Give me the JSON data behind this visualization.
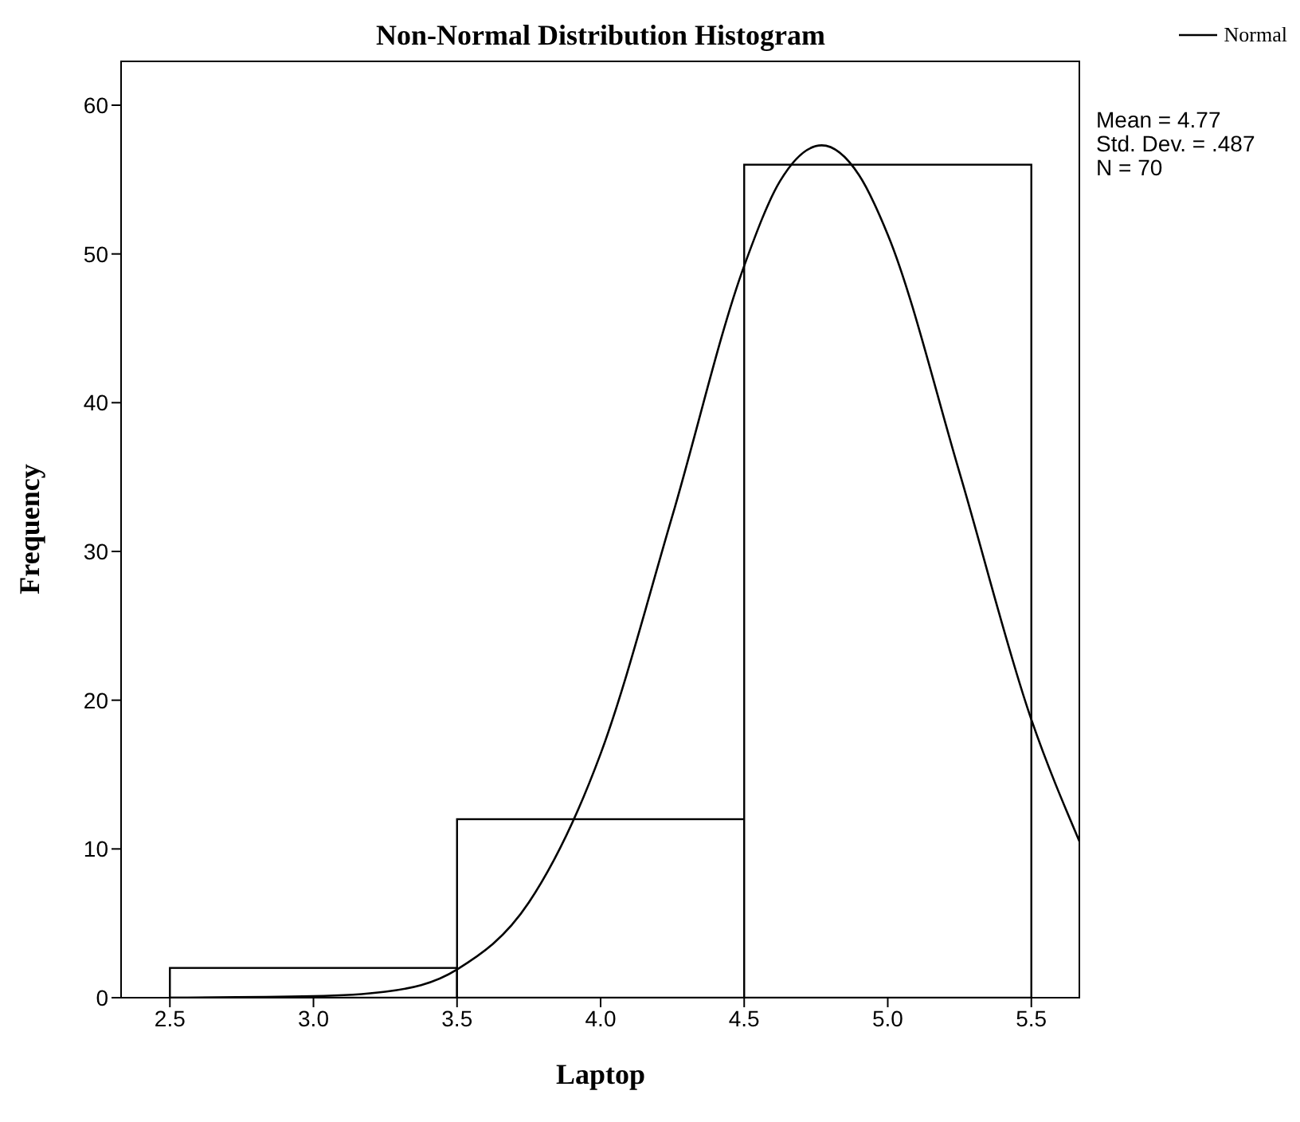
{
  "chart_data": {
    "type": "histogram",
    "title": "Non-Normal Distribution Histogram",
    "xlabel": "Laptop",
    "ylabel": "Frequency",
    "bins": [
      2.5,
      3.5,
      4.5,
      5.5
    ],
    "values": [
      2,
      12,
      56
    ],
    "color": "#ffffff",
    "series": [
      {
        "name": "Normal",
        "type": "line",
        "color": "#000000",
        "x": [
          2.5,
          3.0,
          3.25,
          3.5,
          3.75,
          4.0,
          4.25,
          4.5,
          4.625,
          4.77,
          4.9,
          5.0,
          5.25,
          5.5,
          5.67
        ],
        "values": [
          0,
          0.1,
          0.4,
          1.9,
          6.4,
          16.4,
          32.4,
          49.2,
          54.9,
          57.3,
          55.3,
          51.3,
          35.3,
          18.7,
          10.4
        ]
      }
    ],
    "xlim": [
      2.33,
      5.67
    ],
    "ylim": [
      0,
      63
    ],
    "xticks": [
      2.5,
      {
        "value": 3,
        "label": "3.0"
      },
      3.5,
      {
        "value": 4,
        "label": "4.0"
      },
      4.5,
      {
        "value": 5,
        "label": "5.0"
      },
      5.5
    ],
    "yticks": [
      0,
      10,
      20,
      30,
      40,
      50,
      60
    ],
    "annotations": [
      "Mean = 4.77",
      "Std. Dev. = .487",
      "N = 70"
    ],
    "legend": "top right",
    "grid": false,
    "marker": "none",
    "line_style": "solid"
  }
}
